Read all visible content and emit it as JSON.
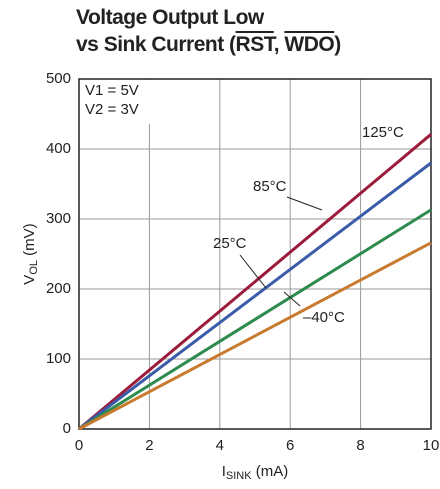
{
  "chart_data": {
    "type": "line",
    "title": "Voltage Output Low",
    "title_line2": [
      "vs Sink Current (",
      "RST",
      ", ",
      "WDO",
      ")"
    ],
    "ylabel": "V",
    "ylabel_sub": "OL",
    "ylabel_unit": " (mV)",
    "xlabel": "I",
    "xlabel_sub": "SINK",
    "xlabel_unit": " (mA)",
    "annotations": [
      "V1 = 5V",
      "V2 = 3V"
    ],
    "x": [
      0,
      10
    ],
    "series": [
      {
        "name": "125°C",
        "color": "#9b1b3a",
        "values": [
          0,
          421
        ]
      },
      {
        "name": "85°C",
        "color": "#3a5ba8",
        "values": [
          0,
          380
        ]
      },
      {
        "name": "25°C",
        "color": "#2e8b4e",
        "values": [
          0,
          313
        ]
      },
      {
        "name": "–40°C",
        "color": "#c87a2e",
        "values": [
          0,
          266
        ]
      }
    ],
    "xlim": [
      0,
      10
    ],
    "xticks": [
      0,
      2,
      4,
      6,
      8,
      10
    ],
    "ylim": [
      0,
      500
    ],
    "yticks": [
      0,
      100,
      200,
      300,
      400,
      500
    ],
    "grid": true
  }
}
